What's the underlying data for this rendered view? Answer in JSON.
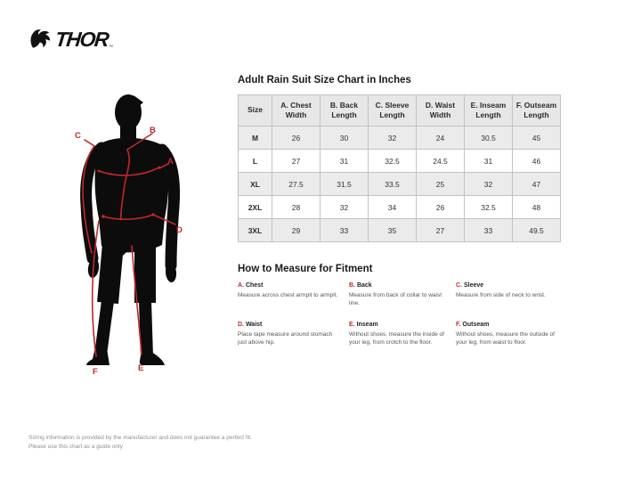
{
  "brand": {
    "name": "THOR",
    "trademark": "™"
  },
  "size_chart": {
    "title": "Adult Rain Suit Size Chart in Inches",
    "columns": [
      "Size",
      "A. Chest Width",
      "B. Back Length",
      "C. Sleeve Length",
      "D. Waist Width",
      "E. Inseam Length",
      "F. Outseam Length"
    ],
    "rows": [
      {
        "size": "M",
        "values": [
          "26",
          "30",
          "32",
          "24",
          "30.5",
          "45"
        ]
      },
      {
        "size": "L",
        "values": [
          "27",
          "31",
          "32.5",
          "24.5",
          "31",
          "46"
        ]
      },
      {
        "size": "XL",
        "values": [
          "27.5",
          "31.5",
          "33.5",
          "25",
          "32",
          "47"
        ]
      },
      {
        "size": "2XL",
        "values": [
          "28",
          "32",
          "34",
          "26",
          "32.5",
          "48"
        ]
      },
      {
        "size": "3XL",
        "values": [
          "29",
          "33",
          "35",
          "27",
          "33",
          "49.5"
        ]
      }
    ]
  },
  "figure": {
    "labels": [
      "A",
      "B",
      "C",
      "D",
      "E",
      "F"
    ],
    "line_color": "#c1272d"
  },
  "measure": {
    "title": "How to Measure for Fitment",
    "items": [
      {
        "letter": "A.",
        "name": "Chest",
        "desc": "Measure across chest armpit to armpit."
      },
      {
        "letter": "B.",
        "name": "Back",
        "desc": "Measure from back of collar to waist line."
      },
      {
        "letter": "C.",
        "name": "Sleeve",
        "desc": "Measure from side of neck to wrist."
      },
      {
        "letter": "D.",
        "name": "Waist",
        "desc": "Place tape measure around stomach just above hip."
      },
      {
        "letter": "E.",
        "name": "Inseam",
        "desc": "Without shoes, measure the inside of your leg, from crotch to the floor."
      },
      {
        "letter": "F.",
        "name": "Outseam",
        "desc": "Without shoes, measure the outside of your leg, from waist to floor."
      }
    ]
  },
  "footer": {
    "line1": "Sizing information is provided by the manufacturer and does not guarantee a perfect fit.",
    "line2": "Please use this chart as a guide only"
  },
  "colors": {
    "accent_red": "#c1272d",
    "row_stripe": "#ebebeb",
    "table_border": "#c2c2c2"
  }
}
